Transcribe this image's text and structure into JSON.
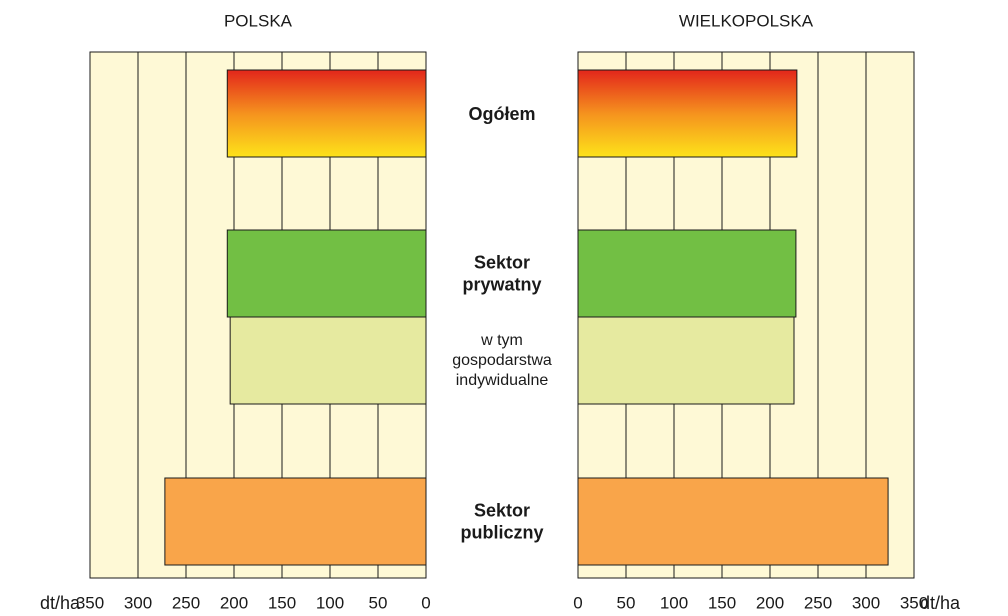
{
  "categories": [
    "Ogółem",
    "Sektor prywatny",
    "w tym gospodarstwa indywidualne",
    "Sektor publiczny"
  ],
  "category_bold": [
    true,
    true,
    false,
    true
  ],
  "colors": [
    [
      "#e3261b",
      "#f5921e",
      "#fde31a"
    ],
    "#72bf44",
    "#e6eaa0",
    "#f9a54a"
  ],
  "chart_data": [
    {
      "type": "bar",
      "title": "POLSKA",
      "xlabel": "dt/ha",
      "x_inverted": true,
      "values": [
        207,
        207,
        204,
        272
      ],
      "xlim": [
        0,
        350
      ],
      "xticks": [
        0,
        50,
        100,
        150,
        200,
        250,
        300,
        350
      ],
      "grid": true
    },
    {
      "type": "bar",
      "title": "WIELKOPOLSKA",
      "xlabel": "dt/ha",
      "x_inverted": false,
      "values": [
        228,
        227,
        225,
        323
      ],
      "xlim": [
        0,
        350
      ],
      "xticks": [
        0,
        50,
        100,
        150,
        200,
        250,
        300,
        350
      ],
      "grid": true
    }
  ]
}
